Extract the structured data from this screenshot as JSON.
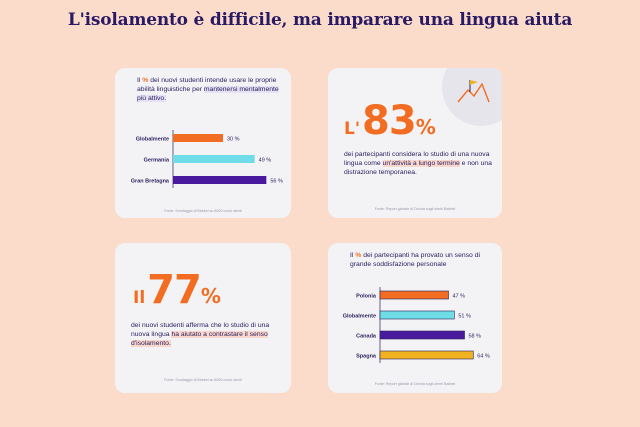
{
  "title": "L'isolamento è difficile, ma imparare una lingua aiuta",
  "cards": {
    "top_left": {
      "text_pre": "Il ",
      "text_pct": "%",
      "text_mid": " dei nuovi studenti intende usare le proprie abilità linguistiche per ",
      "text_hl": "mantenersi mentalmente più attivo.",
      "source": "Fonte: Sondaggio di Babbel su 8000 nuovi utenti"
    },
    "top_right": {
      "prefix": "L'",
      "number": "83",
      "pct": "%",
      "text_a": "dei partecipanti considera lo studio di una nuova lingua come ",
      "text_hl": "un'attività a lungo termine",
      "text_b": " e non una distrazione temporanea.",
      "source": "Fonte: Report globale di Dorota sugli utenti Babbel"
    },
    "bottom_left": {
      "prefix": "Il",
      "number": "77",
      "pct": "%",
      "text_a": "dei nuovi studenti afferma che lo studio di una nuova lingua ",
      "text_hl": "ha aiutato a contrastare il senso d'isolamento.",
      "source": "Fonte: Sondaggio di Babbel su 8000 nuovi utenti"
    },
    "bottom_right": {
      "text_pre": "Il ",
      "text_pct": "%",
      "text_rest": " dei partecipanti ha provato un senso di grande soddisfazione personale",
      "source": "Fonte: Report globale di Dorota sugli utenti Babbel"
    }
  },
  "chart_data": [
    {
      "type": "bar",
      "orientation": "horizontal",
      "categories": [
        "Globalmente",
        "Germania",
        "Gran Bretagna"
      ],
      "values": [
        30,
        49,
        56
      ],
      "value_labels": [
        "30 %",
        "49 %",
        "56 %"
      ],
      "colors": [
        "#f26d21",
        "#6fdde8",
        "#4a1a9e"
      ],
      "xlim": [
        0,
        60
      ]
    },
    {
      "type": "bar",
      "orientation": "horizontal",
      "categories": [
        "Polonia",
        "Globalmente",
        "Canada",
        "Spagna"
      ],
      "values": [
        47,
        51,
        58,
        64
      ],
      "value_labels": [
        "47 %",
        "51 %",
        "58 %",
        "64 %"
      ],
      "colors": [
        "#f26d21",
        "#6fdde8",
        "#4a1a9e",
        "#f0b21e"
      ],
      "xlim": [
        0,
        70
      ]
    }
  ]
}
